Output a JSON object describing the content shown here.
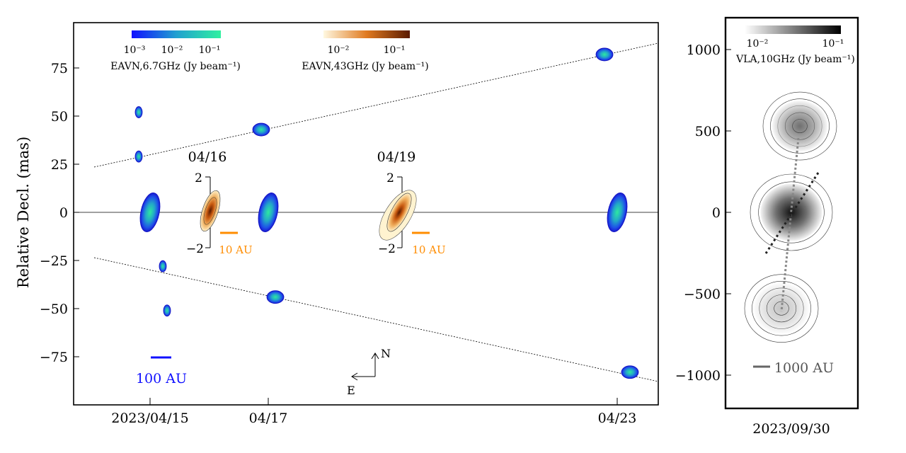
{
  "chart_data": [
    {
      "type": "scatter",
      "ylabel": "Relative Decl. (mas)",
      "ylim": [
        -92,
        98
      ],
      "yticks": [
        75,
        50,
        25,
        0,
        -25,
        -50,
        -75
      ],
      "ytick_labels": [
        "75",
        "50",
        "25",
        "0",
        "−25",
        "−50",
        "−75"
      ],
      "x_tick_labels": [
        "2023/04/15",
        "04/17",
        "04/23"
      ],
      "colorbars": [
        {
          "name": "EAVN,6.7GHz (Jy beam⁻¹)",
          "tick_labels": [
            "10⁻³",
            "10⁻²",
            "10⁻¹"
          ],
          "colors": [
            "#1010ff",
            "#20a0d0",
            "#30f0a0"
          ]
        },
        {
          "name": "EAVN,43GHz (Jy beam⁻¹)",
          "tick_labels": [
            "10⁻²",
            "10⁻¹"
          ],
          "colors": [
            "#fff8e0",
            "#e07a20",
            "#5a1a00"
          ]
        }
      ],
      "maser_spots": [
        {
          "epoch": "2023/04/15",
          "y": 52
        },
        {
          "epoch": "2023/04/15",
          "y": 29
        },
        {
          "epoch": "2023/04/15",
          "y": 0
        },
        {
          "epoch": "2023/04/15",
          "y": -28
        },
        {
          "epoch": "2023/04/15",
          "y": -51
        },
        {
          "epoch": "04/17",
          "y": 43
        },
        {
          "epoch": "04/17",
          "y": 0
        },
        {
          "epoch": "04/17",
          "y": -44
        },
        {
          "epoch": "04/23",
          "y": 82
        },
        {
          "epoch": "04/23",
          "y": 0
        },
        {
          "epoch": "04/23",
          "y": -83
        }
      ],
      "insets": [
        {
          "date": "04/16",
          "yticks": [
            "2",
            "−2"
          ],
          "scale_label": "10 AU"
        },
        {
          "date": "04/19",
          "yticks": [
            "2",
            "−2"
          ],
          "scale_label": "10 AU"
        }
      ],
      "scale_bar_label": "100 AU",
      "compass": {
        "north": "N",
        "east": "E"
      }
    },
    {
      "type": "heatmap",
      "xlabel": "2023/09/30",
      "ylim": [
        -1200,
        1200
      ],
      "yticks": [
        1000,
        500,
        0,
        -500,
        -1000
      ],
      "ytick_labels": [
        "1000",
        "500",
        "0",
        "−500",
        "−1000"
      ],
      "colorbar": {
        "name": "VLA,10GHz (Jy beam⁻¹)",
        "tick_labels": [
          "10⁻²",
          "10⁻¹"
        ]
      },
      "components": [
        {
          "y": 530,
          "peak": "medium"
        },
        {
          "y": 0,
          "peak": "strong"
        },
        {
          "y": -590,
          "peak": "weak"
        }
      ],
      "scale_bar_label": "1000 AU"
    }
  ]
}
